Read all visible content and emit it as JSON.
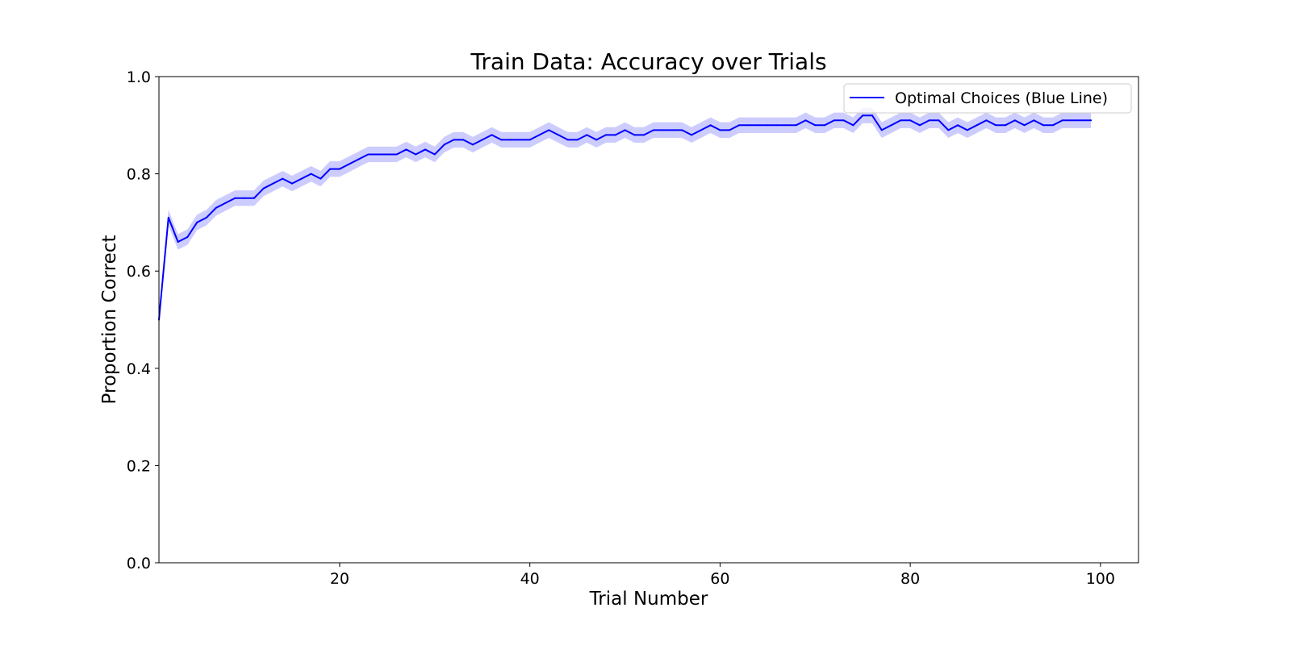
{
  "chart_data": {
    "type": "line",
    "title": "Train Data: Accuracy over Trials",
    "xlabel": "Trial Number",
    "ylabel": "Proportion Correct",
    "xlim": [
      1,
      104
    ],
    "ylim": [
      0.0,
      1.0
    ],
    "xticks": [
      20,
      40,
      60,
      80,
      100
    ],
    "xtick_labels": [
      "20",
      "40",
      "60",
      "80",
      "100"
    ],
    "yticks": [
      0.0,
      0.2,
      0.4,
      0.6,
      0.8,
      1.0
    ],
    "ytick_labels": [
      "0.0",
      "0.2",
      "0.4",
      "0.6",
      "0.8",
      "1.0"
    ],
    "grid": false,
    "legend": {
      "placement": "top-right"
    },
    "series": [
      {
        "name": "Optimal Choices (Blue Line)",
        "color": "#0000ff",
        "band_color": "#0000ff",
        "band_opacity": 0.2,
        "band_halfwidth": 0.016,
        "x": [
          1,
          2,
          3,
          4,
          5,
          6,
          7,
          8,
          9,
          10,
          11,
          12,
          13,
          14,
          15,
          16,
          17,
          18,
          19,
          20,
          21,
          22,
          23,
          24,
          25,
          26,
          27,
          28,
          29,
          30,
          31,
          32,
          33,
          34,
          35,
          36,
          37,
          38,
          39,
          40,
          41,
          42,
          43,
          44,
          45,
          46,
          47,
          48,
          49,
          50,
          51,
          52,
          53,
          54,
          55,
          56,
          57,
          58,
          59,
          60,
          61,
          62,
          63,
          64,
          65,
          66,
          67,
          68,
          69,
          70,
          71,
          72,
          73,
          74,
          75,
          76,
          77,
          78,
          79,
          80,
          81,
          82,
          83,
          84,
          85,
          86,
          87,
          88,
          89,
          90,
          91,
          92,
          93,
          94,
          95,
          96,
          97,
          98,
          99
        ],
        "values": [
          0.5,
          0.71,
          0.66,
          0.67,
          0.7,
          0.71,
          0.73,
          0.74,
          0.75,
          0.75,
          0.75,
          0.77,
          0.78,
          0.79,
          0.78,
          0.79,
          0.8,
          0.79,
          0.81,
          0.81,
          0.82,
          0.83,
          0.84,
          0.84,
          0.84,
          0.84,
          0.85,
          0.84,
          0.85,
          0.84,
          0.86,
          0.87,
          0.87,
          0.86,
          0.87,
          0.88,
          0.87,
          0.87,
          0.87,
          0.87,
          0.88,
          0.89,
          0.88,
          0.87,
          0.87,
          0.88,
          0.87,
          0.88,
          0.88,
          0.89,
          0.88,
          0.88,
          0.89,
          0.89,
          0.89,
          0.89,
          0.88,
          0.89,
          0.9,
          0.89,
          0.89,
          0.9,
          0.9,
          0.9,
          0.9,
          0.9,
          0.9,
          0.9,
          0.91,
          0.9,
          0.9,
          0.91,
          0.91,
          0.9,
          0.92,
          0.92,
          0.89,
          0.9,
          0.91,
          0.91,
          0.9,
          0.91,
          0.91,
          0.89,
          0.9,
          0.89,
          0.9,
          0.91,
          0.9,
          0.9,
          0.91,
          0.9,
          0.91,
          0.9,
          0.9,
          0.91,
          0.91,
          0.91,
          0.91
        ]
      }
    ]
  }
}
